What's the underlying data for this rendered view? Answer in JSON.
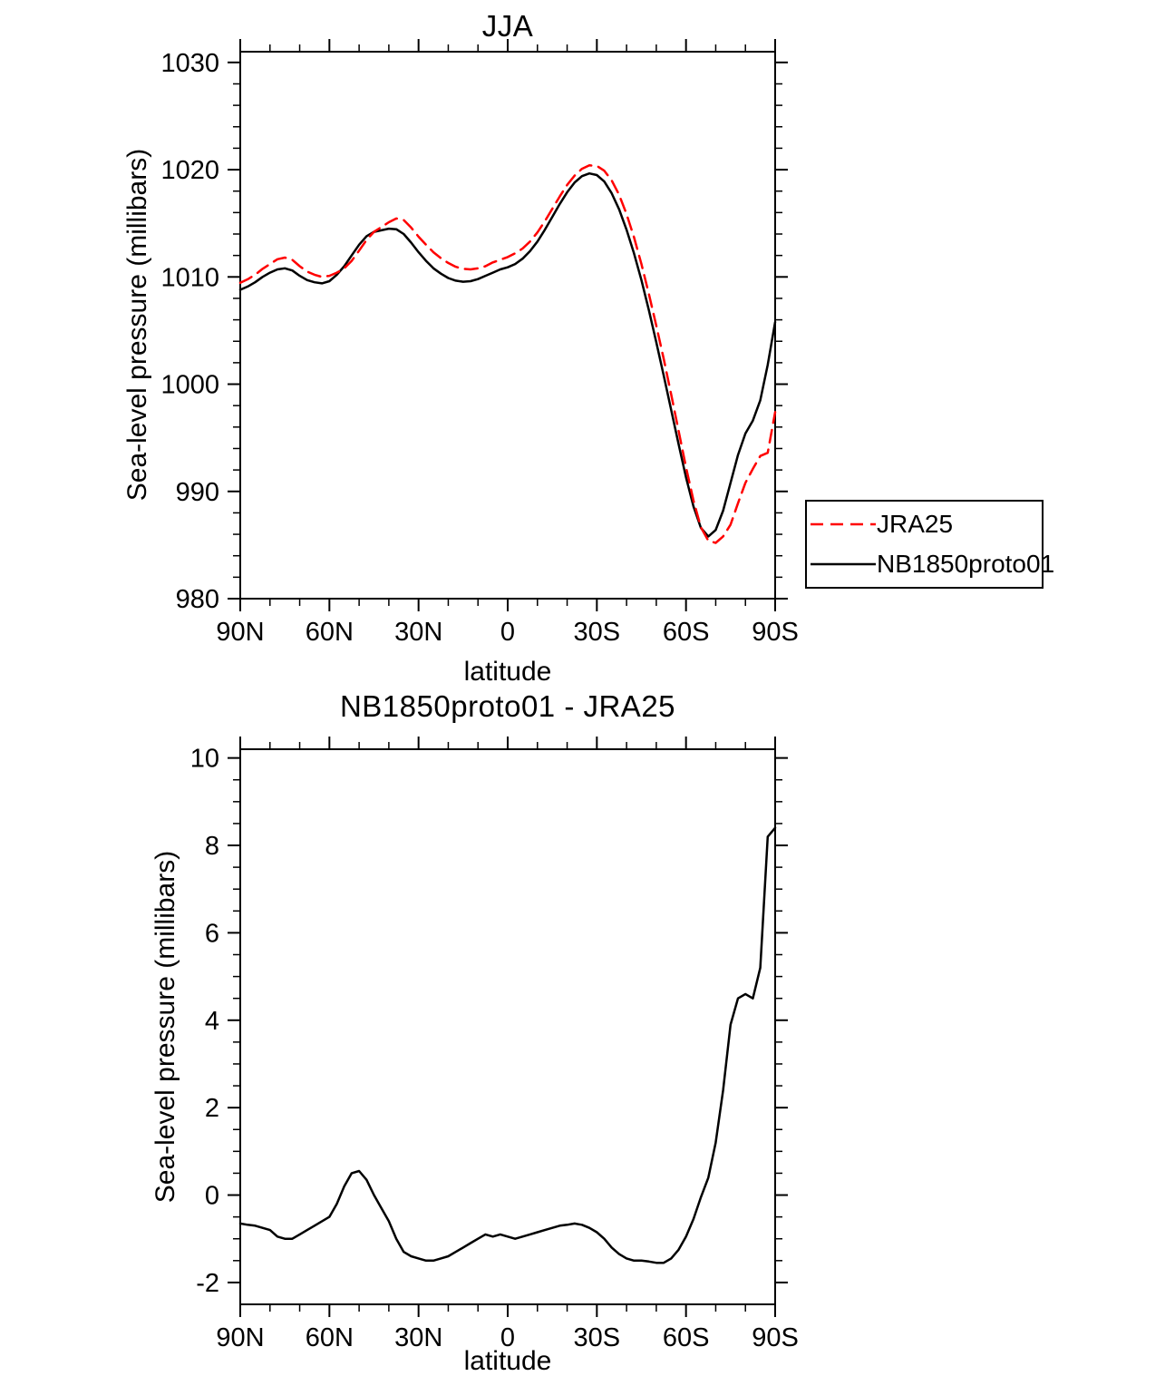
{
  "accent_colors": {
    "series_red": "#ff0000",
    "series_black": "#000000",
    "background": "#ffffff"
  },
  "chart_data": [
    {
      "type": "line",
      "title": "JJA",
      "xlabel": "latitude",
      "ylabel": "Sea-level pressure (millibars)",
      "xlim": [
        90,
        -90
      ],
      "ylim": [
        980,
        1031
      ],
      "grid": false,
      "x_ticks": {
        "values": [
          90,
          60,
          30,
          0,
          -30,
          -60,
          -90
        ],
        "labels": [
          "90N",
          "60N",
          "30N",
          "0",
          "30S",
          "60S",
          "90S"
        ],
        "minor_step": 10
      },
      "y_ticks": {
        "values": [
          980,
          990,
          1000,
          1010,
          1020,
          1030
        ],
        "labels": [
          "980",
          "990",
          "1000",
          "1010",
          "1020",
          "1030"
        ],
        "minor_step": 2
      },
      "legend": {
        "position": "outside-right",
        "entries": [
          {
            "label": "JRA25"
          },
          {
            "label": "NB1850proto01"
          }
        ]
      },
      "x": [
        90,
        87.5,
        85,
        82.5,
        80,
        77.5,
        75,
        72.5,
        70,
        67.5,
        65,
        62.5,
        60,
        57.5,
        55,
        52.5,
        50,
        47.5,
        45,
        42.5,
        40,
        37.5,
        35,
        32.5,
        30,
        27.5,
        25,
        22.5,
        20,
        17.5,
        15,
        12.5,
        10,
        7.5,
        5,
        2.5,
        0,
        -2.5,
        -5,
        -7.5,
        -10,
        -12.5,
        -15,
        -17.5,
        -20,
        -22.5,
        -25,
        -27.5,
        -30,
        -32.5,
        -35,
        -37.5,
        -40,
        -42.5,
        -45,
        -47.5,
        -50,
        -52.5,
        -55,
        -57.5,
        -60,
        -62.5,
        -65,
        -67.5,
        -70,
        -72.5,
        -75,
        -77.5,
        -80,
        -82.5,
        -85,
        -87.5,
        -90
      ],
      "series": [
        {
          "name": "JRA25",
          "color": "#ff0000",
          "dash": true,
          "values": [
            1009.45,
            1009.78,
            1010.2,
            1010.75,
            1011.2,
            1011.65,
            1011.8,
            1011.6,
            1011,
            1010.5,
            1010.2,
            1010,
            1010.1,
            1010.4,
            1010.8,
            1011.5,
            1012.45,
            1013.45,
            1014.2,
            1014.65,
            1015.1,
            1015.45,
            1015.3,
            1014.6,
            1013.75,
            1013,
            1012.3,
            1011.75,
            1011.3,
            1010.95,
            1010.75,
            1010.7,
            1010.8,
            1011,
            1011.35,
            1011.6,
            1011.85,
            1012.2,
            1012.65,
            1013.3,
            1014.15,
            1015.2,
            1016.35,
            1017.5,
            1018.58,
            1019.45,
            1020.08,
            1020.4,
            1020.35,
            1019.9,
            1019,
            1017.65,
            1015.85,
            1013.7,
            1011.2,
            1008.42,
            1005.45,
            1002.35,
            999.05,
            995.65,
            992.25,
            989.15,
            986.65,
            985.4,
            985.2,
            985.8,
            986.9,
            988.9,
            990.8,
            992.1,
            993.3,
            993.6,
            997.4
          ]
        },
        {
          "name": "NB1850proto01",
          "color": "#000000",
          "dash": false,
          "values": [
            1008.8,
            1009.1,
            1009.5,
            1010,
            1010.4,
            1010.7,
            1010.8,
            1010.6,
            1010.1,
            1009.7,
            1009.5,
            1009.4,
            1009.6,
            1010.2,
            1011,
            1012,
            1013,
            1013.8,
            1014.2,
            1014.35,
            1014.5,
            1014.45,
            1014,
            1013.2,
            1012.3,
            1011.5,
            1010.8,
            1010.3,
            1009.9,
            1009.65,
            1009.55,
            1009.6,
            1009.8,
            1010.1,
            1010.4,
            1010.7,
            1010.9,
            1011.2,
            1011.7,
            1012.4,
            1013.3,
            1014.4,
            1015.6,
            1016.8,
            1017.9,
            1018.8,
            1019.4,
            1019.65,
            1019.5,
            1018.9,
            1017.8,
            1016.3,
            1014.4,
            1012.2,
            1009.7,
            1006.9,
            1003.9,
            1000.8,
            997.6,
            994.4,
            991.3,
            988.6,
            986.6,
            985.8,
            986.4,
            988.2,
            990.8,
            993.4,
            995.4,
            996.6,
            998.5,
            1001.8,
            1005.8
          ]
        }
      ]
    },
    {
      "type": "line",
      "title": "NB1850proto01 - JRA25",
      "xlabel": "latitude",
      "ylabel": "Sea-level pressure (millibars)",
      "xlim": [
        90,
        -90
      ],
      "ylim": [
        -2.5,
        10.2
      ],
      "grid": false,
      "x_ticks": {
        "values": [
          90,
          60,
          30,
          0,
          -30,
          -60,
          -90
        ],
        "labels": [
          "90N",
          "60N",
          "30N",
          "0",
          "30S",
          "60S",
          "90S"
        ],
        "minor_step": 10
      },
      "y_ticks": {
        "values": [
          -2,
          0,
          2,
          4,
          6,
          8,
          10
        ],
        "labels": [
          "-2",
          "0",
          "2",
          "4",
          "6",
          "8",
          "10"
        ],
        "minor_step": 0.5
      },
      "x": [
        90,
        87.5,
        85,
        82.5,
        80,
        77.5,
        75,
        72.5,
        70,
        67.5,
        65,
        62.5,
        60,
        57.5,
        55,
        52.5,
        50,
        47.5,
        45,
        42.5,
        40,
        37.5,
        35,
        32.5,
        30,
        27.5,
        25,
        22.5,
        20,
        17.5,
        15,
        12.5,
        10,
        7.5,
        5,
        2.5,
        0,
        -2.5,
        -5,
        -7.5,
        -10,
        -12.5,
        -15,
        -17.5,
        -20,
        -22.5,
        -25,
        -27.5,
        -30,
        -32.5,
        -35,
        -37.5,
        -40,
        -42.5,
        -45,
        -47.5,
        -50,
        -52.5,
        -55,
        -57.5,
        -60,
        -62.5,
        -65,
        -67.5,
        -70,
        -72.5,
        -75,
        -77.5,
        -80,
        -82.5,
        -85,
        -87.5,
        -90
      ],
      "series": [
        {
          "name": "NB1850proto01 - JRA25",
          "color": "#000000",
          "dash": false,
          "values": [
            -0.65,
            -0.68,
            -0.7,
            -0.75,
            -0.8,
            -0.95,
            -1,
            -1,
            -0.9,
            -0.8,
            -0.7,
            -0.6,
            -0.5,
            -0.2,
            0.2,
            0.5,
            0.55,
            0.35,
            0,
            -0.3,
            -0.6,
            -1,
            -1.3,
            -1.4,
            -1.45,
            -1.5,
            -1.5,
            -1.45,
            -1.4,
            -1.3,
            -1.2,
            -1.1,
            -1,
            -0.9,
            -0.95,
            -0.9,
            -0.95,
            -1,
            -0.95,
            -0.9,
            -0.85,
            -0.8,
            -0.75,
            -0.7,
            -0.68,
            -0.65,
            -0.68,
            -0.75,
            -0.85,
            -1,
            -1.2,
            -1.35,
            -1.45,
            -1.5,
            -1.5,
            -1.52,
            -1.55,
            -1.55,
            -1.45,
            -1.25,
            -0.95,
            -0.55,
            -0.05,
            0.4,
            1.2,
            2.4,
            3.9,
            4.5,
            4.6,
            4.5,
            5.2,
            8.2,
            8.4
          ]
        }
      ]
    }
  ]
}
